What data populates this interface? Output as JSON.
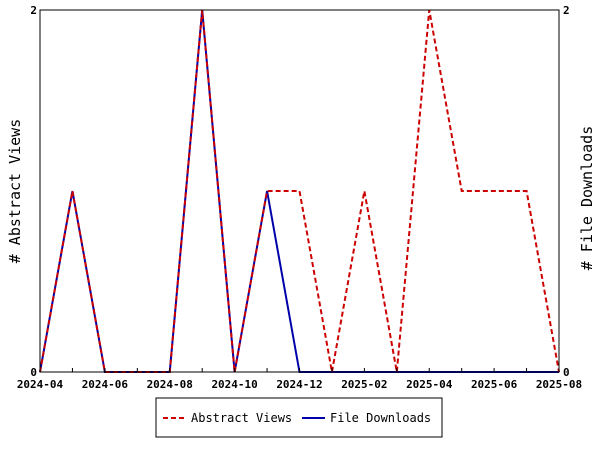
{
  "chart_data": {
    "type": "line",
    "xlabel": "",
    "ylabel_left": "# Abstract Views",
    "ylabel_right": "# File Downloads",
    "x": [
      "2024-04",
      "2024-05",
      "2024-06",
      "2024-07",
      "2024-08",
      "2024-09",
      "2024-10",
      "2024-11",
      "2024-12",
      "2025-01",
      "2025-02",
      "2025-03",
      "2025-04",
      "2025-05",
      "2025-06",
      "2025-07",
      "2025-08"
    ],
    "x_tick_labels": [
      "2024-04",
      "2024-06",
      "2024-08",
      "2024-10",
      "2024-12",
      "2025-02",
      "2025-04",
      "2025-06",
      "2025-08"
    ],
    "ylim": [
      0,
      2
    ],
    "y_tick_labels_left": [
      "0",
      "2"
    ],
    "y_tick_labels_right": [
      "0",
      "2"
    ],
    "grid": false,
    "legend_position": "bottom",
    "series": [
      {
        "name": "Abstract Views",
        "axis": "left",
        "color": "#cc0000",
        "style": "dashed",
        "values": [
          0,
          1,
          0,
          0,
          0,
          2,
          0,
          1,
          1,
          0,
          1,
          0,
          2,
          1,
          1,
          1,
          0
        ]
      },
      {
        "name": "File Downloads",
        "axis": "right",
        "color": "#0000aa",
        "style": "solid",
        "values": [
          0,
          1,
          0,
          0,
          0,
          2,
          0,
          1,
          0,
          0,
          0,
          0,
          0,
          0,
          0,
          0,
          0
        ]
      }
    ]
  }
}
